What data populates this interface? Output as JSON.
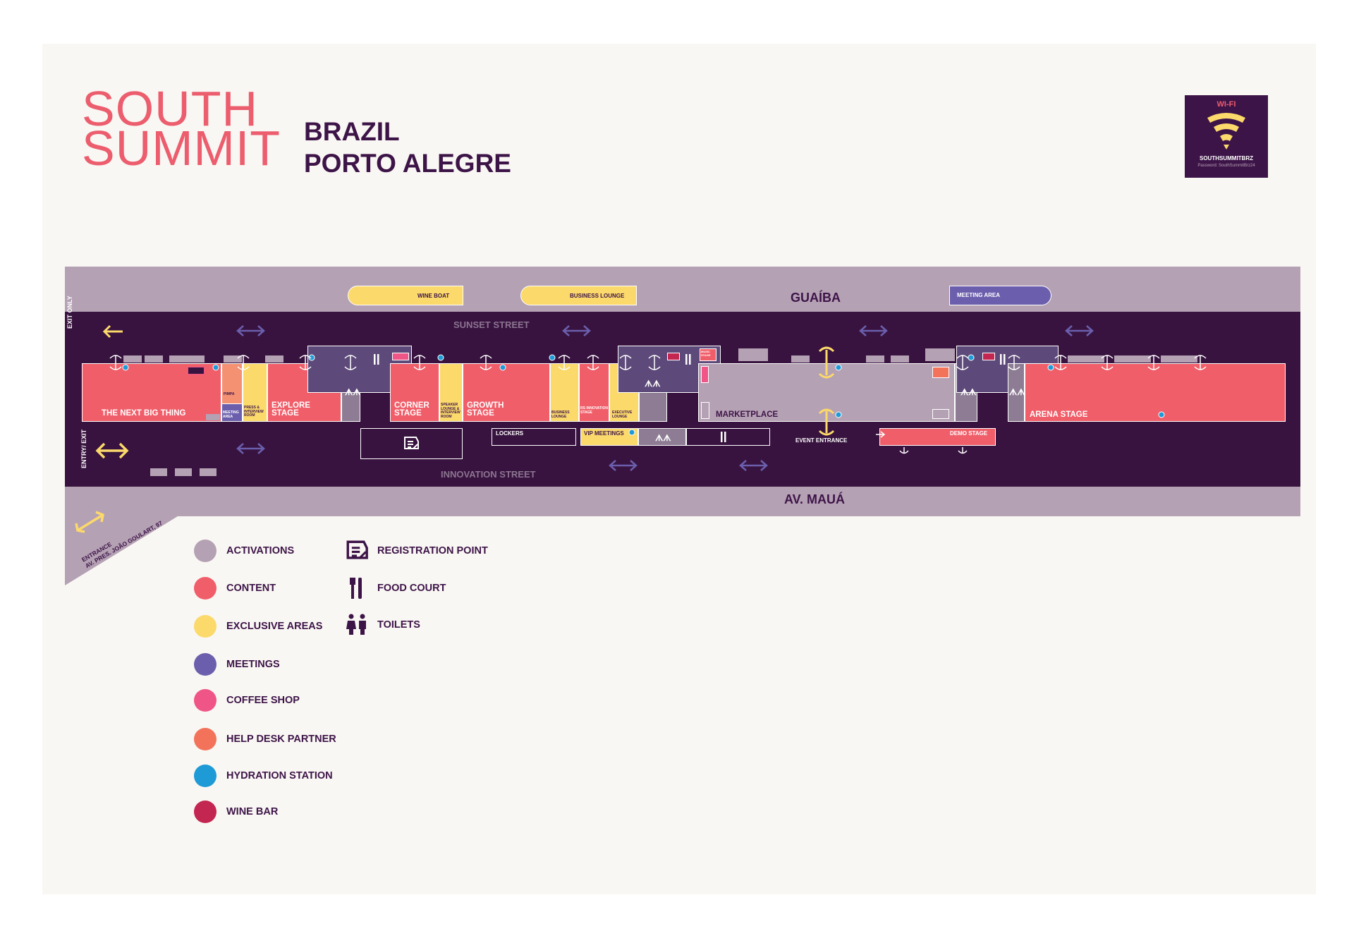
{
  "logo": {
    "line1": "SOUTH",
    "line2": "SUMMIT"
  },
  "city": {
    "line1": "BRAZIL",
    "line2": "PORTO ALEGRE"
  },
  "wifi": {
    "title": "WI-FI",
    "ssid": "SOUTHSUMMITBRZ",
    "password": "Password: SouthSummitBrz24"
  },
  "map": {
    "river": "GUAÍBA",
    "avenue": "AV. MAUÁ",
    "sunset_street": "SUNSET STREET",
    "innovation_street": "INNOVATION STREET",
    "exit_only": "EXIT ONLY",
    "entry_exit": "ENTRY/ EXIT",
    "entrance_line1": "ENTRANCE",
    "entrance_line2": "AV. PRES. JOÃO GOULART, 97",
    "event_entrance": "EVENT ENTRANCE",
    "boats": {
      "wine_boat": "WINE BOAT",
      "business_lounge": "BUSINESS LOUNGE",
      "meeting_area": "MEETING AREA"
    },
    "areas": {
      "next_big_thing": "THE NEXT BIG THING",
      "pimpa": "PIMPA",
      "meeting_area": "MEETING AREA",
      "press_room": "PRESS & INTERVIEW ROOM",
      "explore_stage": "EXPLORE STAGE",
      "corner_stage": "CORNER STAGE",
      "speaker_lounge": "SPEAKER LOUNGE & INTERVIEW ROOM",
      "growth_stage": "GROWTH STAGE",
      "business_lounge": "BUSINESS LOUNGE",
      "rs_innovation_stage": "RS INNOVATION STAGE",
      "executive_lounge": "EXECUTIVE LOUNGE",
      "music_stage": "MUSIC STAGE",
      "marketplace": "MARKETPLACE",
      "arena_stage": "ARENA STAGE",
      "lockers": "LOCKERS",
      "vip_meetings": "VIP MEETINGS",
      "demo_stage": "DEMO STAGE"
    }
  },
  "legend": {
    "categories": [
      {
        "label": "ACTIVATIONS",
        "color": "#b5a1b4"
      },
      {
        "label": "CONTENT",
        "color": "#f05e69"
      },
      {
        "label": "EXCLUSIVE AREAS",
        "color": "#fbd96b"
      },
      {
        "label": "MEETINGS",
        "color": "#6b5fad"
      },
      {
        "label": "COFFEE SHOP",
        "color": "#ef5587"
      },
      {
        "label": "HELP DESK PARTNER",
        "color": "#f3735a"
      },
      {
        "label": "HYDRATION STATION",
        "color": "#1e9ad6"
      },
      {
        "label": "WINE BAR",
        "color": "#c32650"
      }
    ],
    "icons": [
      {
        "label": "REGISTRATION POINT",
        "icon": "registration-icon"
      },
      {
        "label": "FOOD COURT",
        "icon": "fork-knife-icon"
      },
      {
        "label": "TOILETS",
        "icon": "toilets-icon"
      }
    ]
  },
  "colors": {
    "brand": "#ec5d6e",
    "dark": "#3d1448",
    "street": "#38133f",
    "activations": "#b5a1b4",
    "content": "#f05e69",
    "exclusive": "#fbd96b",
    "meetings": "#6b5fad"
  }
}
